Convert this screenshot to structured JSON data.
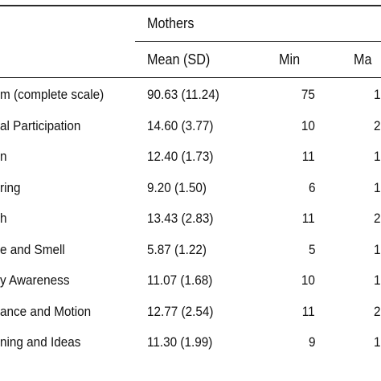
{
  "table": {
    "group_header": "Mothers",
    "columns": {
      "mean": "Mean (SD)",
      "min": "Min",
      "max": "Ma"
    },
    "rows": [
      {
        "label": "m (complete scale)",
        "mean": "90.63 (11.24)",
        "min": "75",
        "max": "1"
      },
      {
        "label": "al Participation",
        "mean": "14.60 (3.77)",
        "min": "10",
        "max": "2"
      },
      {
        "label": "n",
        "mean": "12.40 (1.73)",
        "min": "11",
        "max": "1"
      },
      {
        "label": "ring",
        "mean": "9.20 (1.50)",
        "min": "6",
        "max": "1"
      },
      {
        "label": "h",
        "mean": "13.43 (2.83)",
        "min": "11",
        "max": "2"
      },
      {
        "label": "e and Smell",
        "mean": "5.87 (1.22)",
        "min": "5",
        "max": "1"
      },
      {
        "label": "y Awareness",
        "mean": "11.07 (1.68)",
        "min": "10",
        "max": "1"
      },
      {
        "label": "ance and Motion",
        "mean": "12.77 (2.54)",
        "min": "11",
        "max": "2"
      },
      {
        "label": "ning and Ideas",
        "mean": "11.30 (1.99)",
        "min": "9",
        "max": "1"
      }
    ]
  }
}
